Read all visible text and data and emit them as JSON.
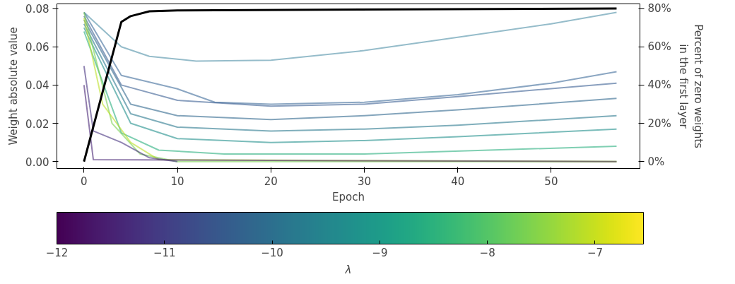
{
  "chart_data": {
    "type": "line",
    "xlabel": "Epoch",
    "ylabel": "Weight absolute value",
    "y2label": "Percent of zero weights\nin the first layer",
    "clabel": "λ",
    "xlim": [
      -2.9,
      59.5
    ],
    "xticks": [
      0,
      10,
      20,
      30,
      40,
      50
    ],
    "ylim": [
      -0.0036,
      0.0824
    ],
    "yticks": [
      {
        "value": 0,
        "label": "0.00"
      },
      {
        "value": 0.02,
        "label": "0.02"
      },
      {
        "value": 0.04,
        "label": "0.04"
      },
      {
        "value": 0.06,
        "label": "0.06"
      },
      {
        "value": 0.08,
        "label": "0.08"
      }
    ],
    "y2lim": [
      -3.6,
      82.4
    ],
    "y2ticks": [
      {
        "value": 0,
        "label": "0%"
      },
      {
        "value": 20,
        "label": "20%"
      },
      {
        "value": 40,
        "label": "40%"
      },
      {
        "value": 60,
        "label": "60%"
      },
      {
        "value": 80,
        "label": "80%"
      }
    ],
    "clim": [
      -12,
      -6.55
    ],
    "cticks": [
      {
        "value": -12,
        "label": "−12"
      },
      {
        "value": -11,
        "label": "−11"
      },
      {
        "value": -10,
        "label": "−10"
      },
      {
        "value": -9,
        "label": "−9"
      },
      {
        "value": -8,
        "label": "−8"
      },
      {
        "value": -7,
        "label": "−7"
      }
    ],
    "grid": false,
    "marker": "none",
    "line_style": "solid",
    "series": [
      {
        "color": "#4e8fa6",
        "x": [
          0,
          4,
          7,
          12,
          20,
          30,
          40,
          50,
          57
        ],
        "values": [
          0.078,
          0.06,
          0.055,
          0.0525,
          0.053,
          0.058,
          0.065,
          0.072,
          0.078
        ]
      },
      {
        "color": "#3e6a9a",
        "x": [
          0,
          4,
          10,
          14,
          20,
          30,
          40,
          50,
          57
        ],
        "values": [
          0.078,
          0.045,
          0.038,
          0.031,
          0.03,
          0.031,
          0.035,
          0.041,
          0.047
        ]
      },
      {
        "color": "#3b5f93",
        "x": [
          0,
          4,
          10,
          20,
          30,
          40,
          57
        ],
        "values": [
          0.076,
          0.04,
          0.032,
          0.029,
          0.03,
          0.034,
          0.041
        ]
      },
      {
        "color": "#30688e",
        "x": [
          0,
          5,
          10,
          20,
          30,
          40,
          57
        ],
        "values": [
          0.074,
          0.03,
          0.024,
          0.022,
          0.024,
          0.027,
          0.033
        ]
      },
      {
        "color": "#2a788e",
        "x": [
          0,
          5,
          10,
          20,
          30,
          40,
          57
        ],
        "values": [
          0.072,
          0.025,
          0.018,
          0.016,
          0.017,
          0.019,
          0.024
        ]
      },
      {
        "color": "#22908c",
        "x": [
          0,
          5,
          10,
          20,
          30,
          40,
          57
        ],
        "values": [
          0.07,
          0.02,
          0.012,
          0.01,
          0.011,
          0.013,
          0.017
        ]
      },
      {
        "color": "#29af7f",
        "x": [
          0,
          4,
          8,
          15,
          30,
          57
        ],
        "values": [
          0.068,
          0.015,
          0.006,
          0.004,
          0.004,
          0.008
        ]
      },
      {
        "color": "#7ad151",
        "x": [
          0,
          3,
          6,
          10,
          57
        ],
        "values": [
          0.078,
          0.02,
          0.004,
          0,
          0
        ]
      },
      {
        "color": "#bddf26",
        "x": [
          0,
          2,
          5,
          8,
          57
        ],
        "values": [
          0.075,
          0.03,
          0.01,
          0.001,
          0
        ]
      },
      {
        "color": "#46327e",
        "x": [
          0,
          1,
          4,
          7,
          10
        ],
        "values": [
          0.05,
          0.016,
          0.01,
          0.002,
          0
        ]
      },
      {
        "color": "#482475",
        "x": [
          0,
          1,
          57
        ],
        "values": [
          0.04,
          0.001,
          0
        ]
      },
      {
        "color": "#000000",
        "axis": "y2",
        "x": [
          0,
          4,
          5,
          7,
          10,
          57
        ],
        "values": [
          0,
          73,
          76,
          78.5,
          79,
          80
        ]
      }
    ]
  }
}
